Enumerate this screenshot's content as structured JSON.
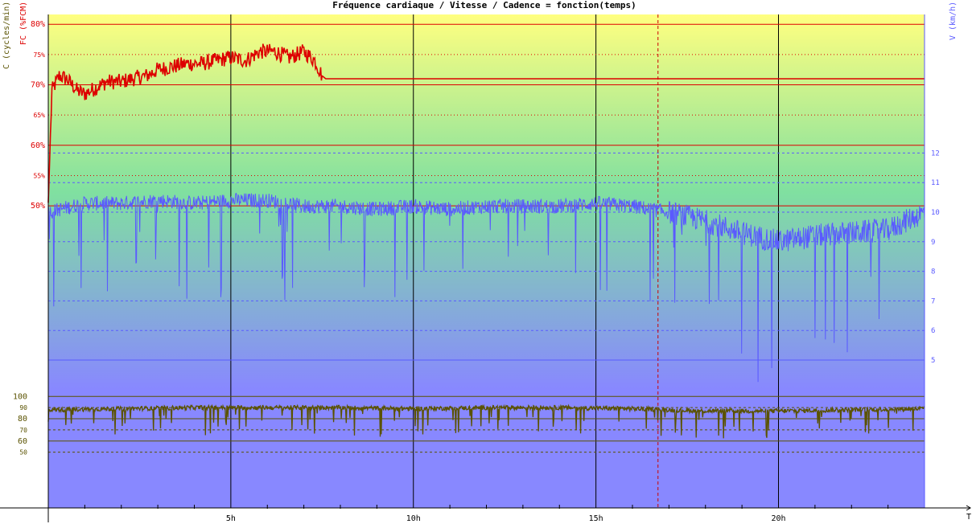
{
  "chart_data": {
    "type": "line",
    "title": "Fréquence cardiaque / Vitesse / Cadence = fonction(temps)",
    "y_left_labels": {
      "cadence": "C (cycles/min)",
      "fc": "FC (%FCM)"
    },
    "y_right_label": "V (km/h)",
    "x_axis_label": "T",
    "x_ticks": [
      "5h",
      "10h",
      "15h",
      "20h"
    ],
    "x_range_hours": [
      0,
      24
    ],
    "fc_ticks": [
      "80%",
      "75%",
      "70%",
      "65%",
      "60%",
      "55%",
      "50%"
    ],
    "fc_ticks_major": [
      "80%",
      "70%",
      "60%",
      "50%"
    ],
    "fc_range_pct": [
      48,
      81
    ],
    "speed_ticks": [
      "12",
      "11",
      "10",
      "9",
      "8",
      "7",
      "6",
      "5"
    ],
    "speed_range_kmh": [
      2.9,
      12.5
    ],
    "cadence_ticks": [
      "100",
      "90",
      "80",
      "70",
      "60",
      "50"
    ],
    "cadence_ticks_major": [
      "100",
      "80",
      "60"
    ],
    "cadence_range": [
      0,
      101
    ],
    "marker_time_h": 16.7,
    "grid": true,
    "colors": {
      "fc": "#dd0000",
      "speed": "#5a5aff",
      "cadence": "#5a5200",
      "marker": "#cc0000",
      "bg_top": "#ffff80",
      "bg_mid": "#80e0a0",
      "bg_bottom": "#8888ff"
    },
    "series": [
      {
        "key": "fc",
        "name": "FC (%FCM)",
        "unit": "%",
        "x": [
          0.0,
          0.1,
          0.3,
          0.5,
          0.8,
          1.0,
          1.3,
          1.6,
          2.0,
          2.3,
          2.7,
          3.0,
          3.4,
          3.8,
          4.2,
          4.6,
          5.0,
          5.4,
          5.8,
          6.2,
          6.6,
          7.0,
          7.3,
          7.5,
          7.6,
          24.0
        ],
        "values": [
          50.5,
          69,
          71.5,
          71,
          69,
          68.5,
          69.5,
          70.5,
          70.5,
          71,
          71.5,
          72.5,
          73,
          73.5,
          73.5,
          74,
          74.5,
          74,
          75.5,
          75.5,
          74.5,
          75.5,
          74,
          71.5,
          71,
          71
        ]
      },
      {
        "key": "speed",
        "name": "V (km/h)",
        "unit": "km/h",
        "x": [
          0,
          1,
          2,
          3,
          4,
          5,
          6,
          7,
          8,
          9,
          10,
          11,
          12,
          13,
          14,
          15,
          16,
          17,
          18,
          19,
          20,
          21,
          22,
          23,
          24
        ],
        "values": [
          10.0,
          10.3,
          10.3,
          10.4,
          10.3,
          10.4,
          10.4,
          10.2,
          10.2,
          10.1,
          10.2,
          10.1,
          10.2,
          10.2,
          10.2,
          10.3,
          10.2,
          10.0,
          9.7,
          9.3,
          9.0,
          9.2,
          9.3,
          9.4,
          10.0
        ]
      },
      {
        "key": "cadence",
        "name": "C (cycles/min)",
        "unit": "cycles/min",
        "x": [
          0,
          2,
          4,
          6,
          8,
          10,
          12,
          14,
          16,
          18,
          20,
          22,
          24
        ],
        "values": [
          88,
          89,
          90,
          90,
          90,
          89,
          90,
          90,
          89,
          87,
          87,
          88,
          89
        ]
      }
    ]
  }
}
